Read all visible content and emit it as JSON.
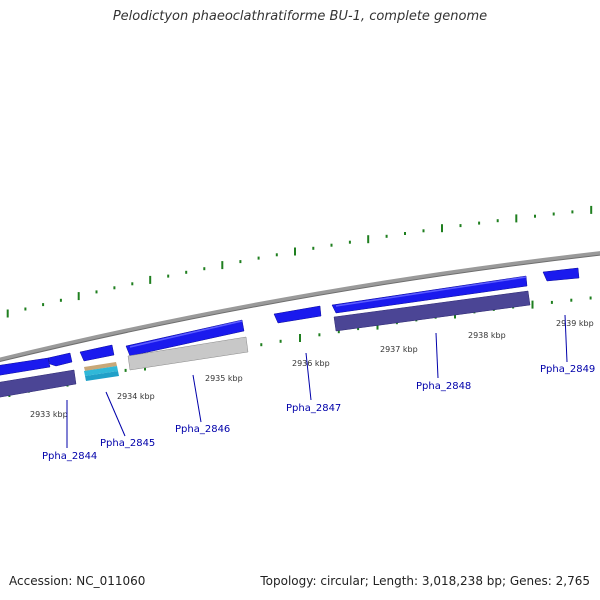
{
  "title": "Pelodictyon phaeoclathratiforme BU-1, complete genome",
  "accession": "Accession: NC_011060",
  "summary": "Topology: circular; Length: 3,018,238 bp; Genes: 2,765",
  "colors": {
    "backbone": "#8a8a8a",
    "tick": "#1f7f1f",
    "cds": "#1a1aee",
    "cds_other_frame": "#4b4595",
    "rna": "#30b8d8",
    "pseudogene": "#c8c8c8",
    "gene_label": "#0000aa"
  },
  "kbp_ticks": [
    "2933 kbp",
    "2934 kbp",
    "2935 kbp",
    "2936 kbp",
    "2937 kbp",
    "2938 kbp",
    "2939 kbp"
  ],
  "gene_labels": [
    "Ppha_2844",
    "Ppha_2845",
    "Ppha_2846",
    "Ppha_2847",
    "Ppha_2848",
    "Ppha_2849"
  ]
}
